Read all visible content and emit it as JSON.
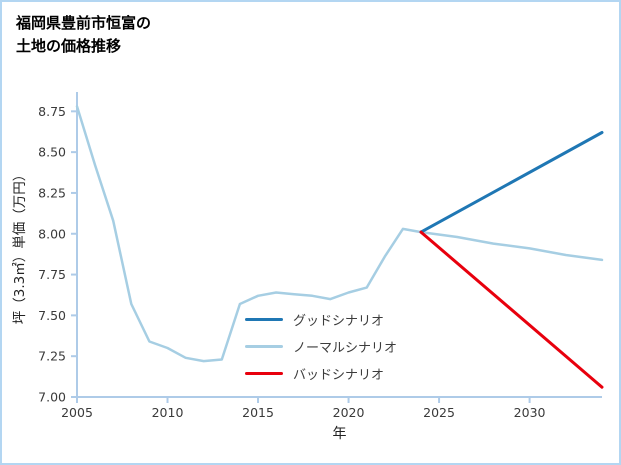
{
  "page": {
    "title_line1": "福岡県豊前市恒富の",
    "title_line2": "土地の価格推移"
  },
  "chart_data": {
    "type": "line",
    "title": "福岡県豊前市恒富の土地の価格推移",
    "xlabel": "年",
    "ylabel": "坪（3.3㎡）単価（万円）",
    "xlim": [
      2005,
      2034
    ],
    "ylim": [
      7.0,
      8.85
    ],
    "xticks": [
      "2005",
      "2010",
      "2015",
      "2020",
      "2025",
      "2030"
    ],
    "xtick_values": [
      2005,
      2010,
      2015,
      2020,
      2025,
      2030
    ],
    "yticks": [
      "7.00",
      "7.25",
      "7.50",
      "7.75",
      "8.00",
      "8.25",
      "8.50",
      "8.75"
    ],
    "ytick_values": [
      7.0,
      7.25,
      7.5,
      7.75,
      8.0,
      8.25,
      8.5,
      8.75
    ],
    "grid": false,
    "legend_position": "inside-lower-center",
    "colors": {
      "axis": "#aecbe8",
      "tick_label": "#3a3a3a",
      "axis_label": "#222222"
    },
    "draw_order": [
      1,
      0,
      2
    ],
    "series": [
      {
        "name": "グッドシナリオ",
        "color": "#1f77b4",
        "width": 3,
        "x": [
          2024,
          2034
        ],
        "y": [
          8.01,
          8.62
        ]
      },
      {
        "name": "ノーマルシナリオ",
        "color": "#a6cee3",
        "width": 2.5,
        "x": [
          2005,
          2006,
          2007,
          2008,
          2009,
          2010,
          2011,
          2012,
          2013,
          2014,
          2015,
          2016,
          2017,
          2018,
          2019,
          2020,
          2021,
          2022,
          2023,
          2024,
          2026,
          2028,
          2030,
          2032,
          2034
        ],
        "y": [
          8.78,
          8.42,
          8.08,
          7.57,
          7.34,
          7.3,
          7.24,
          7.22,
          7.23,
          7.57,
          7.62,
          7.64,
          7.63,
          7.62,
          7.6,
          7.64,
          7.67,
          7.86,
          8.03,
          8.01,
          7.98,
          7.94,
          7.91,
          7.87,
          7.84
        ]
      },
      {
        "name": "バッドシナリオ",
        "color": "#e8000d",
        "width": 3,
        "x": [
          2024,
          2034
        ],
        "y": [
          8.01,
          7.06
        ]
      }
    ]
  }
}
